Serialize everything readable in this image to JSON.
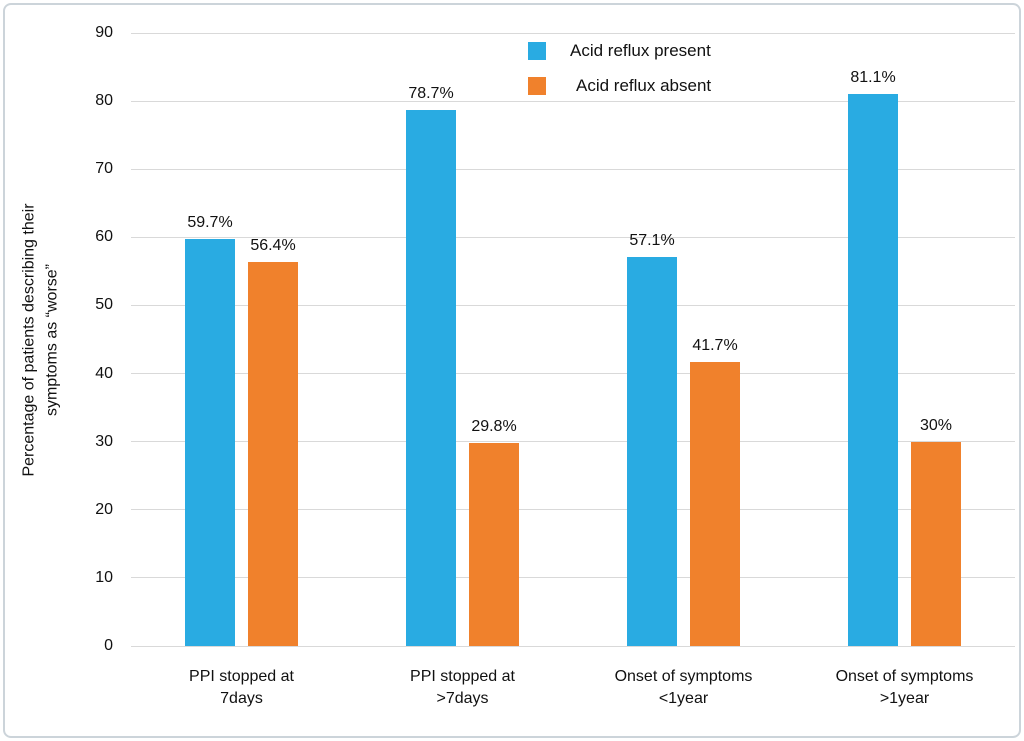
{
  "figure": {
    "background_color": "#ffffff",
    "border_color": "#ccd4da",
    "gridline_color": "#d9d9d9"
  },
  "chart_data": {
    "type": "bar",
    "title": "",
    "categories": [
      "PPI stopped at\n7days",
      "PPI stopped at\n>7days",
      "Onset of symptoms\n<1year",
      "Onset of symptoms\n>1year"
    ],
    "series": [
      {
        "name": "Acid reflux present",
        "color": "#29ABE2",
        "values": [
          59.7,
          78.7,
          57.1,
          81.1
        ],
        "labels": [
          "59.7%",
          "78.7%",
          "57.1%",
          "81.1%"
        ]
      },
      {
        "name": "Acid reflux absent",
        "color": "#F0812C",
        "values": [
          56.4,
          29.8,
          41.7,
          30
        ],
        "labels": [
          "56.4%",
          "29.8%",
          "41.7%",
          "30%"
        ]
      }
    ],
    "xlabel": "",
    "ylabel": "Percentage of patients describing their\nsymptoms as “worse”",
    "ylim": [
      0,
      90
    ],
    "yticks": [
      0,
      10,
      20,
      30,
      40,
      50,
      60,
      70,
      80,
      90
    ],
    "grid": true,
    "legend_position": "top-center"
  }
}
